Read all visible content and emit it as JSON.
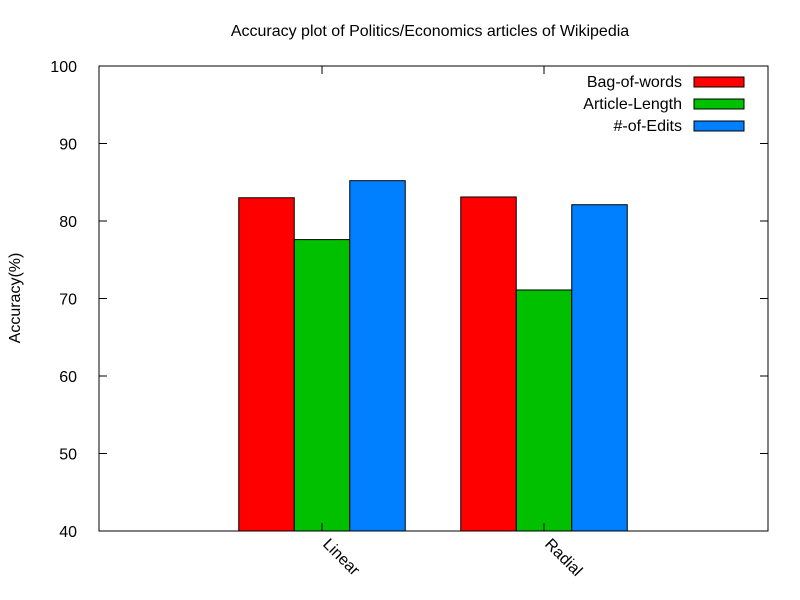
{
  "chart_data": {
    "type": "bar",
    "title": "Accuracy plot of Politics/Economics articles of Wikipedia",
    "xlabel": "",
    "ylabel": "Accuracy(%)",
    "ylim": [
      40,
      100
    ],
    "yticks": [
      40,
      50,
      60,
      70,
      80,
      90,
      100
    ],
    "categories": [
      "Linear",
      "Radial"
    ],
    "series": [
      {
        "name": "Bag-of-words",
        "color": "#ff0000",
        "values": [
          83.0,
          83.1
        ]
      },
      {
        "name": "Article-Length",
        "color": "#00c000",
        "values": [
          77.6,
          71.1
        ]
      },
      {
        "name": "#-of-Edits",
        "color": "#0080ff",
        "values": [
          85.2,
          82.1
        ]
      }
    ],
    "legend_position": "top-right",
    "grid": false
  }
}
